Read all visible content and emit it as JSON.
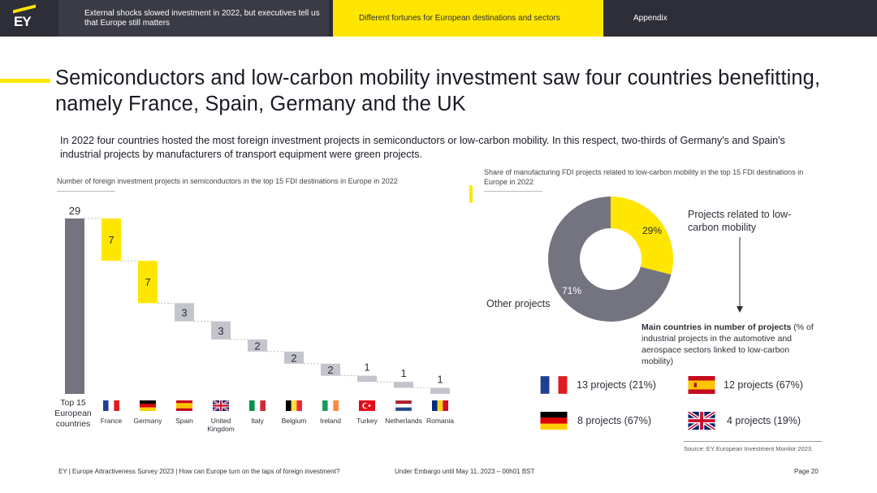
{
  "nav": {
    "logo_text": "EY",
    "tab1": "External shocks slowed investment in 2022, but executives tell us that Europe still matters",
    "tab2": "Different fortunes for European destinations and sectors",
    "tab3": "Appendix"
  },
  "title": "Semiconductors and low-carbon mobility investment saw four countries benefitting, namely France, Spain, Germany and the UK",
  "intro": "In 2022 four countries hosted the most foreign investment projects in semiconductors or low-carbon mobility. In this respect, two-thirds of Germany's and Spain's industrial projects by manufacturers of transport equipment were green projects.",
  "chart_data": [
    {
      "type": "bar",
      "title": "Number of foreign investment projects in semiconductors in the top 15 FDI destinations in Europe in 2022",
      "total_label": "Top 15 European countries",
      "total": 29,
      "categories": [
        "France",
        "Germany",
        "Spain",
        "United Kingdom",
        "Italy",
        "Belgium",
        "Ireland",
        "Turkey",
        "Netherlands",
        "Romania"
      ],
      "values": [
        7,
        7,
        3,
        3,
        2,
        2,
        2,
        1,
        1,
        1
      ],
      "colors": {
        "total": "#747480",
        "highlight": "#ffe600",
        "other": "#c4c4cd"
      },
      "highlighted": [
        "France",
        "Germany"
      ]
    },
    {
      "type": "pie",
      "title": "Share of manufacturing FDI projects related to low-carbon mobility in the top 15 FDI destinations in Europe in 2022",
      "slices": [
        {
          "label": "Projects related to low-carbon mobility",
          "value": 29,
          "display": "29%",
          "color": "#ffe600"
        },
        {
          "label": "Other projects",
          "value": 71,
          "display": "71%",
          "color": "#747480"
        }
      ]
    }
  ],
  "countries": {
    "title_bold": "Main countries in number of projects",
    "title_rest": " (% of industrial projects in the automotive and aerospace sectors linked to low-carbon mobility)",
    "items": [
      {
        "flag": "france-flag",
        "text": "13 projects (21%)"
      },
      {
        "flag": "spain-flag",
        "text": "12 projects (67%)"
      },
      {
        "flag": "germany-flag",
        "text": "8 projects (67%)"
      },
      {
        "flag": "uk-flag",
        "text": "4 projects (19%)"
      }
    ]
  },
  "source": "Source: EY European Investment Monitor 2023.",
  "footer": {
    "left": "EY | Europe Attractiveness Survey 2023 | How can Europe turn on the taps of foreign investment?",
    "center": "Under Embargo until May 11, 2023 – 00h01 BST",
    "right": "Page 20"
  }
}
